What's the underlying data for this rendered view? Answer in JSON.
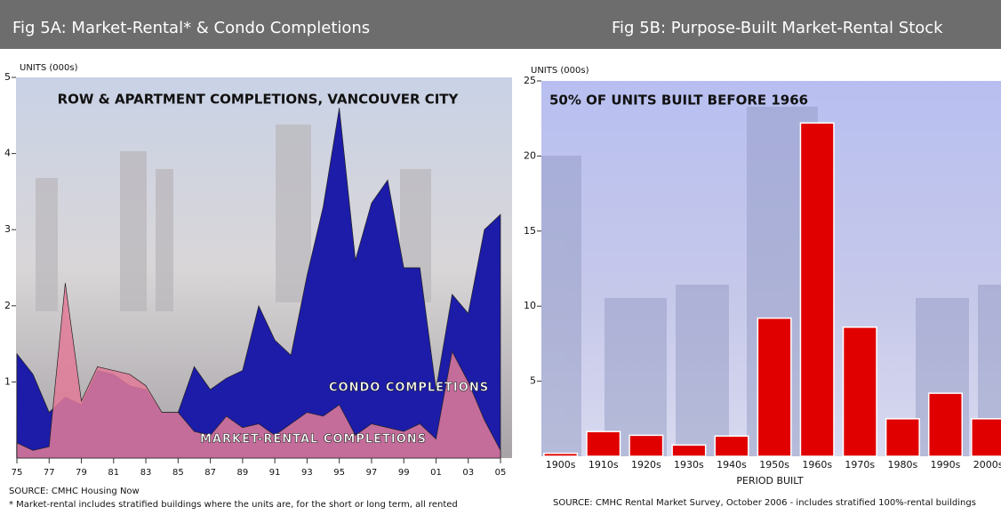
{
  "chart_data": [
    {
      "type": "area",
      "title": "Fig 5A: Market-Rental* & Condo Completions",
      "subtitle": "ROW & APARTMENT COMPLETIONS, VANCOUVER CITY",
      "ylabel": "UNITS (000s)",
      "source": "SOURCE: CMHC Housing Now",
      "footnote": "*  Market-rental includes stratified buildings where the units are, for the short or long term, all rented",
      "x": [
        1975,
        1976,
        1977,
        1978,
        1979,
        1980,
        1981,
        1982,
        1983,
        1984,
        1985,
        1986,
        1987,
        1988,
        1989,
        1990,
        1991,
        1992,
        1993,
        1994,
        1995,
        1996,
        1997,
        1998,
        1999,
        2000,
        2001,
        2002,
        2003,
        2004,
        2005
      ],
      "series": [
        {
          "name": "CONDO COMPLETIONS",
          "color": "#1c1ca8",
          "values": [
            1.37,
            1.1,
            0.6,
            0.8,
            0.7,
            1.15,
            1.1,
            0.95,
            0.9,
            0.6,
            0.6,
            1.2,
            0.9,
            1.05,
            1.15,
            2.0,
            1.55,
            1.35,
            2.4,
            3.3,
            4.6,
            2.6,
            3.35,
            3.65,
            2.5,
            2.5,
            0.9,
            2.15,
            1.9,
            3.0,
            3.2
          ]
        },
        {
          "name": "MARKET-RENTAL COMPLETIONS",
          "color": "#e27a98",
          "values": [
            0.2,
            0.1,
            0.15,
            2.3,
            0.75,
            1.2,
            1.15,
            1.1,
            0.95,
            0.6,
            0.6,
            0.35,
            0.3,
            0.55,
            0.4,
            0.45,
            0.3,
            0.45,
            0.6,
            0.55,
            0.7,
            0.3,
            0.45,
            0.4,
            0.35,
            0.45,
            0.25,
            1.4,
            1.0,
            0.5,
            0.1
          ]
        }
      ],
      "xlim": [
        1975,
        2005
      ],
      "xticks": [
        {
          "value": 1975,
          "label": "75"
        },
        {
          "value": 1977,
          "label": "77"
        },
        {
          "value": 1979,
          "label": "79"
        },
        {
          "value": 1981,
          "label": "81"
        },
        {
          "value": 1983,
          "label": "83"
        },
        {
          "value": 1985,
          "label": "85"
        },
        {
          "value": 1987,
          "label": "87"
        },
        {
          "value": 1989,
          "label": "89"
        },
        {
          "value": 1991,
          "label": "91"
        },
        {
          "value": 1993,
          "label": "93"
        },
        {
          "value": 1995,
          "label": "95"
        },
        {
          "value": 1997,
          "label": "97"
        },
        {
          "value": 1999,
          "label": "99"
        },
        {
          "value": 2001,
          "label": "01"
        },
        {
          "value": 2003,
          "label": "03"
        },
        {
          "value": 2005,
          "label": "05"
        }
      ],
      "ylim": [
        0,
        5
      ],
      "yticks": [
        1,
        2,
        3,
        4,
        5
      ]
    },
    {
      "type": "bar",
      "title": "Fig 5B: Purpose-Built Market-Rental Stock",
      "subtitle": "50% OF UNITS BUILT BEFORE 1966",
      "ylabel": "UNITS (000s)",
      "xlabel": "PERIOD BUILT",
      "source": "SOURCE: CMHC Rental Market Survey, October 2006 - includes stratified 100%-rental buildings",
      "categories": [
        "1900s",
        "1910s",
        "1920s",
        "1930s",
        "1940s",
        "1950s",
        "1960s",
        "1970s",
        "1980s",
        "1990s",
        "2000s"
      ],
      "values": [
        0.2,
        1.65,
        1.4,
        0.75,
        1.35,
        9.2,
        22.2,
        8.6,
        2.5,
        4.2,
        2.5
      ],
      "color": "#e00000",
      "ylim": [
        0,
        25
      ],
      "yticks": [
        5,
        10,
        15,
        20,
        25
      ]
    }
  ]
}
